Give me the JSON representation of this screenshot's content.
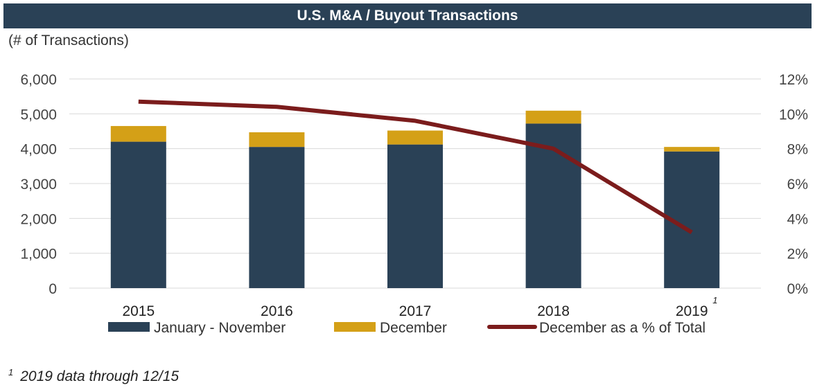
{
  "chart_data": {
    "type": "bar",
    "title": "U.S. M&A / Buyout Transactions",
    "ylabel": "(# of Transactions)",
    "categories": [
      "2015",
      "2016",
      "2017",
      "2018",
      "2019"
    ],
    "category_footnotes": {
      "2019": "1"
    },
    "stacked": true,
    "ylim": [
      0,
      6000
    ],
    "yticks": [
      "0",
      "1,000",
      "2,000",
      "3,000",
      "4,000",
      "5,000",
      "6,000"
    ],
    "y2lim": [
      0,
      12
    ],
    "y2ticks": [
      "0%",
      "2%",
      "4%",
      "6%",
      "8%",
      "10%",
      "12%"
    ],
    "grid": true,
    "legend_position": "bottom",
    "series": [
      {
        "name": "January - November",
        "type": "bar",
        "axis": "left",
        "values": [
          4200,
          4050,
          4120,
          4720,
          3920
        ],
        "color": "#2a4156"
      },
      {
        "name": "December",
        "type": "bar",
        "axis": "left",
        "values": [
          450,
          420,
          400,
          370,
          130
        ],
        "color": "#d4a017"
      },
      {
        "name": "December as a % of Total",
        "type": "line",
        "axis": "right",
        "values": [
          10.7,
          10.4,
          9.6,
          8.0,
          3.2
        ],
        "color": "#7b1c1c"
      }
    ]
  },
  "footnote": {
    "marker": "1",
    "text": "2019 data through 12/15"
  }
}
